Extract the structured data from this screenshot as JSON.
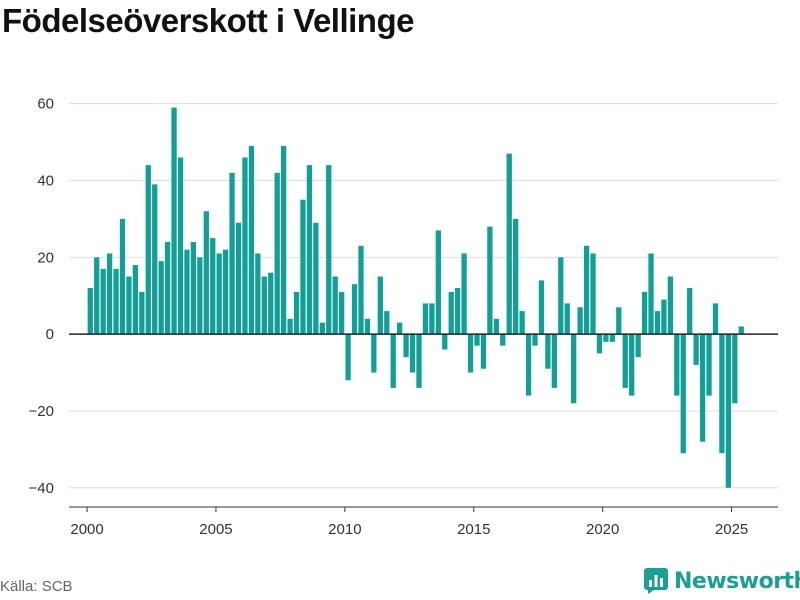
{
  "title": "Födelseöverskott i Vellinge",
  "source": "Källa: SCB",
  "brand": {
    "name": "Newsworthy",
    "icon": "bar-chart-icon",
    "color": "#1e9e92"
  },
  "colors": {
    "bar": "#12a096",
    "grid": "#dddddd",
    "zero": "#222222"
  },
  "chart_data": {
    "type": "bar",
    "xlabel": "",
    "ylabel": "",
    "xlim": [
      1999.3,
      2026.8
    ],
    "ylim": [
      -45,
      62
    ],
    "x_ticks": [
      2000,
      2005,
      2010,
      2015,
      2020,
      2025
    ],
    "y_ticks": [
      -40,
      -20,
      0,
      20,
      40,
      60
    ],
    "grid": true,
    "legend": "none",
    "start": 2000.125,
    "step": 0.25,
    "values": [
      12,
      20,
      17,
      21,
      17,
      30,
      15,
      18,
      11,
      44,
      39,
      19,
      24,
      59,
      46,
      22,
      24,
      20,
      32,
      25,
      21,
      22,
      42,
      29,
      46,
      49,
      21,
      15,
      16,
      42,
      49,
      4,
      11,
      35,
      44,
      29,
      3,
      44,
      15,
      11,
      -12,
      13,
      23,
      4,
      -10,
      15,
      6,
      -14,
      3,
      -6,
      -10,
      -14,
      8,
      8,
      27,
      -4,
      11,
      12,
      21,
      -10,
      -3,
      -9,
      28,
      4,
      -3,
      47,
      30,
      6,
      -16,
      -3,
      14,
      -9,
      -14,
      20,
      8,
      -18,
      7,
      23,
      21,
      -5,
      -2,
      -2,
      7,
      -14,
      -16,
      -6,
      11,
      21,
      6,
      9,
      15,
      -16,
      -31,
      12,
      -8,
      -28,
      -16,
      8,
      -31,
      -40,
      -18,
      2
    ]
  }
}
